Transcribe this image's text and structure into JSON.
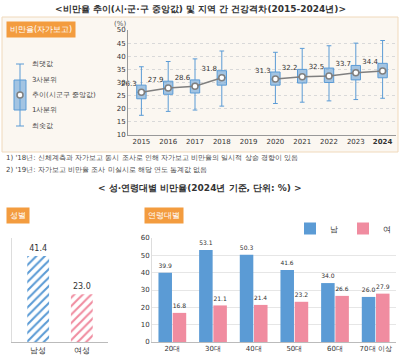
{
  "header": "<비만율 추이(시·군·구 중앙값) 및 지역 간 건강격차(2015-2024년)>",
  "notes": [
    "1) '18년: 신체계측과 자가보고 동시 조사로 인해 자가보고 비만율의 일시적 상승 경향이 있음",
    "2) '19년: 자가보고 비만율 조사 미실시로 해당 연도 통계값 없음"
  ],
  "section_title": "< 성·연령대별 비만율(2024년 기준, 단위: %) >",
  "chart_data": [
    {
      "type": "box",
      "title": "비만율(자가보고)",
      "y_unit": "(%)",
      "categories": [
        "2015",
        "2016",
        "2017",
        "2018",
        "2019",
        "2020",
        "2021",
        "2022",
        "2023",
        "2024"
      ],
      "min": [
        17.5,
        19.0,
        19.5,
        21.0,
        null,
        22.0,
        22.5,
        23.0,
        23.5,
        24.0
      ],
      "q1": [
        23.8,
        25.5,
        26.0,
        29.0,
        null,
        29.0,
        29.8,
        30.0,
        31.0,
        31.8
      ],
      "q3": [
        29.0,
        30.5,
        31.0,
        34.5,
        null,
        34.0,
        35.0,
        35.5,
        36.5,
        37.3
      ],
      "max": [
        36.0,
        38.0,
        39.0,
        42.0,
        null,
        41.5,
        43.0,
        44.0,
        45.0,
        46.0
      ],
      "series": [
        {
          "name": "추이(시군구 중앙값)",
          "color": "#7f7f7f",
          "values": [
            26.3,
            27.9,
            28.6,
            31.8,
            null,
            31.3,
            32.2,
            32.5,
            33.7,
            34.4
          ]
        }
      ],
      "legend_labels": {
        "max": "최댓값",
        "q3": "3사분위",
        "q1": "1사분위",
        "min": "최솟값"
      },
      "color": "#5b9bd5",
      "data_labels": true,
      "ylim": [
        10,
        50
      ],
      "yticks": [
        10,
        15,
        20,
        25,
        30,
        35,
        40,
        45,
        50
      ],
      "grid": true
    },
    {
      "type": "bar",
      "title": "성별",
      "categories": [
        "남성",
        "여성"
      ],
      "values": [
        41.4,
        23.0
      ],
      "value_labels": [
        "41.4",
        "23.0"
      ],
      "colors": [
        "#5b9bd5",
        "#f08ca0"
      ],
      "marker": "hatch",
      "ylim": [
        0,
        50
      ],
      "tick_labels": "x",
      "data_labels": true
    },
    {
      "type": "bar",
      "title": "연령대별",
      "categories": [
        "20대",
        "30대",
        "40대",
        "50대",
        "60대",
        "70대 이상"
      ],
      "series": [
        {
          "name": "남",
          "color": "#5b9bd5",
          "values": [
            39.9,
            53.1,
            50.3,
            41.6,
            34.0,
            26.0
          ],
          "value_labels": [
            "39.9",
            "53.1",
            "50.3",
            "41.6",
            "34.0",
            "26.0"
          ]
        },
        {
          "name": "여",
          "color": "#f08ca0",
          "values": [
            16.8,
            21.1,
            21.4,
            23.2,
            26.6,
            27.9
          ],
          "value_labels": [
            "16.8",
            "21.1",
            "21.4",
            "23.2",
            "26.6",
            "27.9"
          ]
        }
      ],
      "ylim": [
        0,
        60
      ],
      "yticks": [
        0,
        10,
        20,
        30,
        40,
        50,
        60
      ],
      "grid": true,
      "legend": "top right",
      "data_labels": true
    }
  ]
}
